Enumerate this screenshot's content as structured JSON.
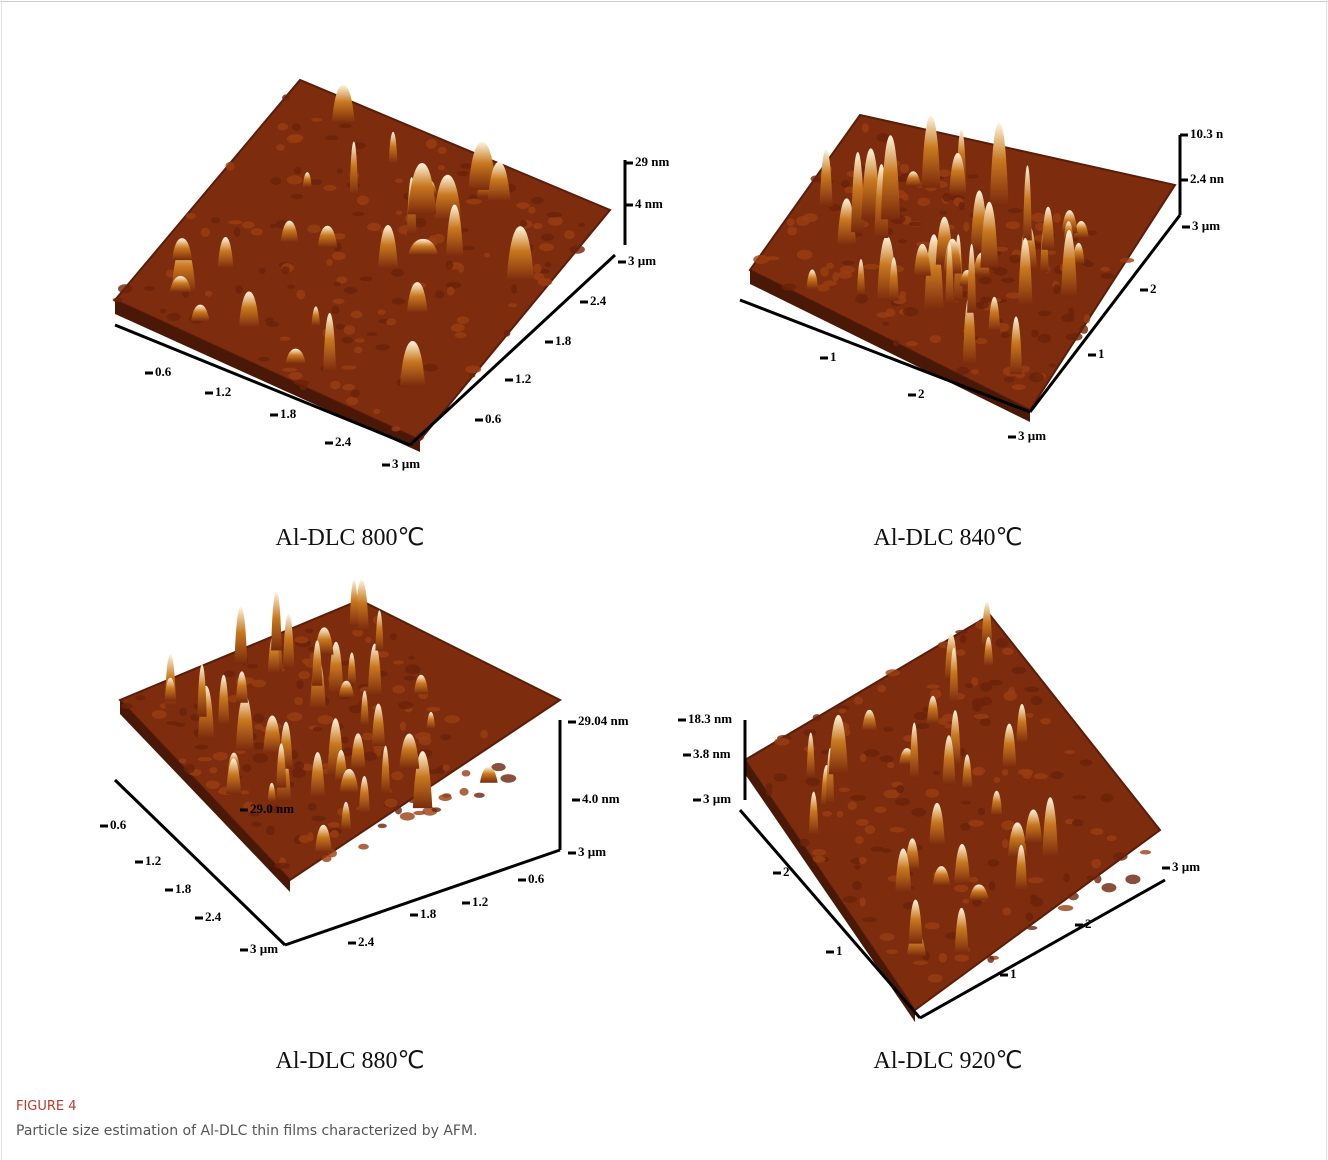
{
  "figure": {
    "label": "FIGURE 4",
    "caption": "Particle size estimation of Al-DLC thin films characterized by AFM.",
    "panels": [
      {
        "caption": "Al-DLC 800℃",
        "axis_labels": [
          "29 nm",
          "4 nm",
          "3 µm",
          "2.4",
          "1.8",
          "1.2",
          "0.6",
          "0.6",
          "1.2",
          "1.8",
          "2.4",
          "3 µm"
        ]
      },
      {
        "caption": "Al-DLC 840℃",
        "axis_labels": [
          "10.3 n",
          "2.4 nn",
          "3 µm",
          "2",
          "1",
          "1",
          "2",
          "3 µm"
        ]
      },
      {
        "caption": "Al-DLC 880℃",
        "axis_labels": [
          "29.04 nm",
          "4.0 nm",
          "3 µm",
          "0.6",
          "1.2",
          "1.8",
          "2.4",
          "3 µm",
          "2.4",
          "1.8",
          "1.2",
          "0.6",
          "29.0 nm"
        ]
      },
      {
        "caption": "Al-DLC 920℃",
        "axis_labels": [
          "18.3 nm",
          "3.8 nm",
          "3 µm",
          "3 µm",
          "2",
          "1",
          "2",
          "1"
        ]
      }
    ]
  }
}
